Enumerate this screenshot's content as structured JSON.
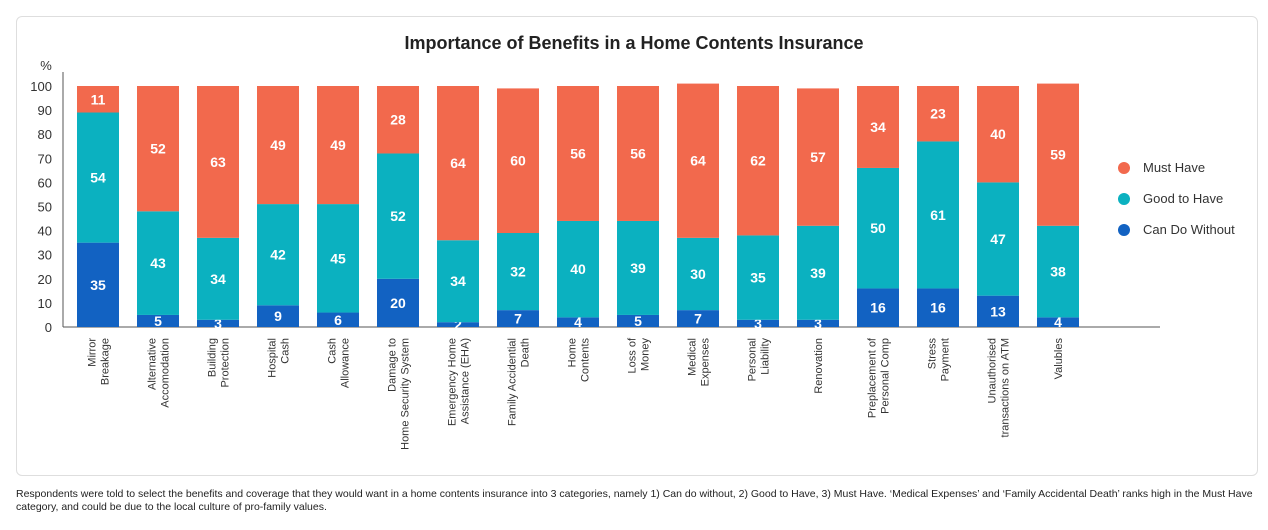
{
  "chart_data": {
    "type": "bar",
    "stacked": true,
    "title": "Importance of Benefits in a Home Contents Insurance",
    "ylabel": "%",
    "ylim": [
      0,
      100
    ],
    "yticks": [
      0,
      10,
      20,
      30,
      40,
      50,
      60,
      70,
      80,
      90,
      100
    ],
    "legend_position": "right",
    "categories": [
      [
        "Mirror",
        "Breakage"
      ],
      [
        "Alternative",
        "Accomodation"
      ],
      [
        "Building",
        "Protection"
      ],
      [
        "Hospital",
        "Cash"
      ],
      [
        "Cash",
        "Allowance"
      ],
      [
        "Damage to",
        "Home Security System"
      ],
      [
        "Emergency Home",
        "Assistance (EHA)"
      ],
      [
        "Family Accidential",
        "Death"
      ],
      [
        "Home",
        "Contents"
      ],
      [
        "Loss of",
        "Money"
      ],
      [
        "Medical",
        "Expenses"
      ],
      [
        "Personal",
        "Liability"
      ],
      [
        "Renovation"
      ],
      [
        "Preplacement of",
        "Personal Comp"
      ],
      [
        "Stress",
        "Payment"
      ],
      [
        "Unauthorised",
        "transactions on ATM"
      ],
      [
        "Valubles"
      ]
    ],
    "series": [
      {
        "name": "Can Do Without",
        "color": "#1262c2",
        "values": [
          35,
          5,
          3,
          9,
          6,
          20,
          2,
          7,
          4,
          5,
          7,
          3,
          3,
          16,
          16,
          13,
          4
        ]
      },
      {
        "name": "Good to Have",
        "color": "#0bb1c0",
        "values": [
          54,
          43,
          34,
          42,
          45,
          52,
          34,
          32,
          40,
          39,
          30,
          35,
          39,
          50,
          61,
          47,
          38
        ]
      },
      {
        "name": "Must Have",
        "color": "#f2694d",
        "values": [
          11,
          52,
          63,
          49,
          49,
          28,
          64,
          60,
          56,
          56,
          64,
          62,
          57,
          34,
          23,
          40,
          59
        ]
      }
    ],
    "legend_order": [
      "Must Have",
      "Good to Have",
      "Can Do Without"
    ]
  },
  "footnote": "Respondents were told to select the benefits and coverage that they would want in a home contents insurance into 3 categories, namely 1) Can do without, 2) Good to Have, 3) Must Have. ‘Medical Expenses’ and ‘Family Accidental Death’ ranks high in the Must Have category, and could be due to the local culture of pro-family values."
}
